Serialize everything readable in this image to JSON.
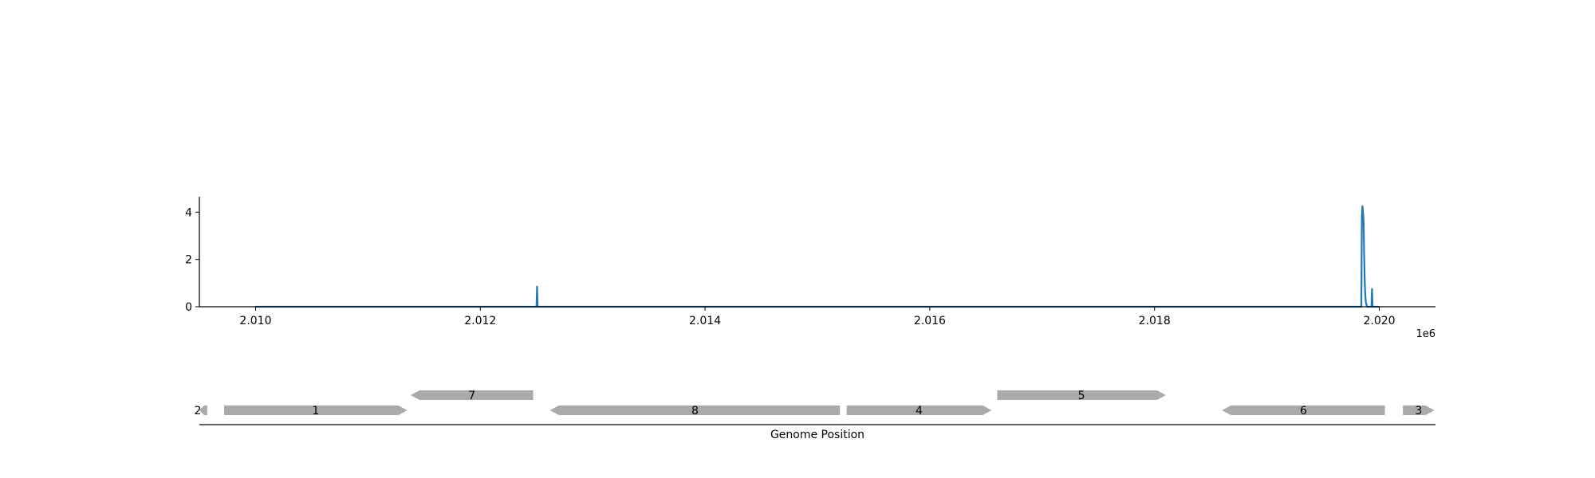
{
  "chart_data": [
    {
      "type": "line",
      "title": "",
      "xlabel": "",
      "ylabel": "",
      "x_offset_label": "1e6",
      "xlim": [
        2.0095,
        2.0205
      ],
      "ylim": [
        0,
        4.65
      ],
      "x_ticks": [
        2.01,
        2.012,
        2.014,
        2.016,
        2.018,
        2.02
      ],
      "x_tick_labels": [
        "2.010",
        "2.012",
        "2.014",
        "2.016",
        "2.018",
        "2.020"
      ],
      "y_ticks": [
        0,
        2,
        4
      ],
      "y_tick_labels": [
        "0",
        "2",
        "4"
      ],
      "grid": false,
      "legend": "none",
      "color": "#1f77b4",
      "series": [
        {
          "x": [
            2.01,
            2.0125,
            2.012505,
            2.01251,
            2.01984,
            2.019845,
            2.01985,
            2.019855,
            2.01986,
            2.019865,
            2.01987,
            2.019875,
            2.01988,
            2.01989,
            2.01993,
            2.019935,
            2.01994,
            2.02
          ],
          "y": [
            0,
            0,
            0.85,
            0,
            0,
            3.8,
            4.25,
            4.0,
            3.6,
            2.2,
            1.1,
            0.5,
            0.2,
            0,
            0,
            0.75,
            0,
            0
          ]
        }
      ]
    },
    {
      "type": "gene_map",
      "xlabel": "Genome Position",
      "xlim": [
        2.0095,
        2.0205
      ],
      "color": "#aaaaaa",
      "genes": [
        {
          "label": "2",
          "start": 2.0095,
          "end": 2.00957,
          "strand": "-",
          "row": 0
        },
        {
          "label": "1",
          "start": 2.00972,
          "end": 2.01135,
          "strand": "+",
          "row": 0
        },
        {
          "label": "7",
          "start": 2.01138,
          "end": 2.01247,
          "strand": "-",
          "row": 1
        },
        {
          "label": "8",
          "start": 2.01262,
          "end": 2.0152,
          "strand": "-",
          "row": 0
        },
        {
          "label": "4",
          "start": 2.01526,
          "end": 2.01655,
          "strand": "+",
          "row": 0
        },
        {
          "label": "5",
          "start": 2.0166,
          "end": 2.0181,
          "strand": "+",
          "row": 1
        },
        {
          "label": "6",
          "start": 2.0186,
          "end": 2.02005,
          "strand": "-",
          "row": 0
        },
        {
          "label": "3",
          "start": 2.02021,
          "end": 2.02049,
          "strand": "+",
          "row": 0
        }
      ]
    }
  ]
}
